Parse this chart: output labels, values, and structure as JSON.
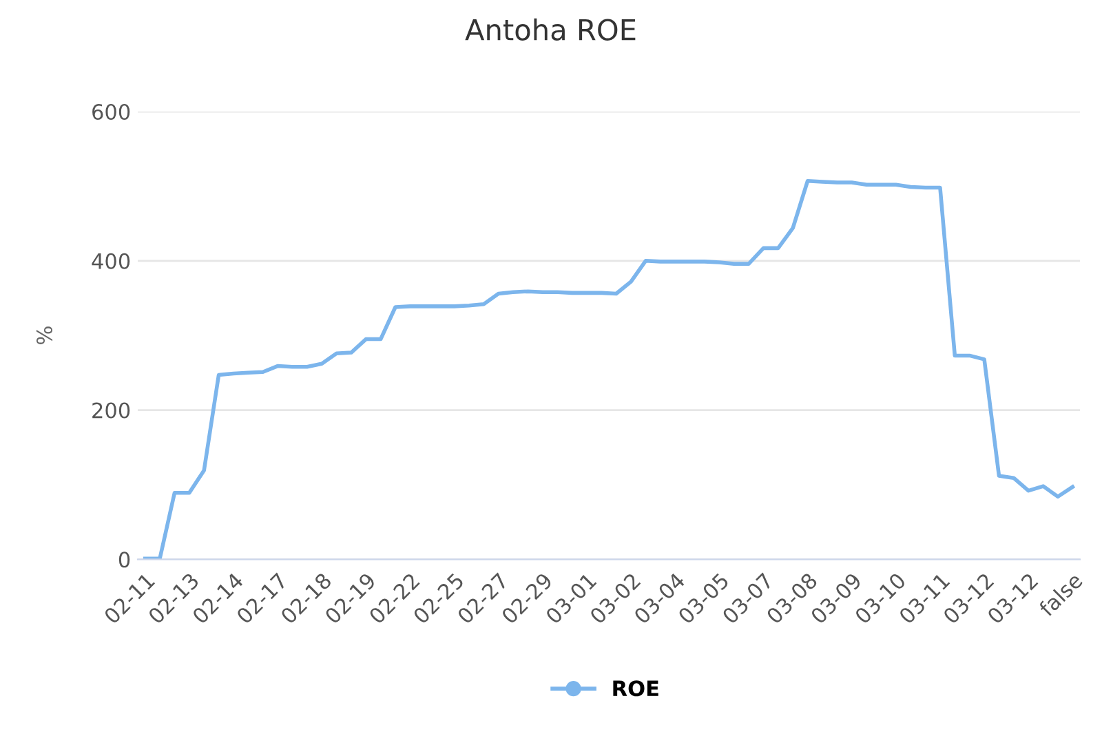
{
  "chart_data": {
    "type": "line",
    "title": "Antoha ROE",
    "ylabel": "%",
    "categories": [
      "02-11",
      null,
      null,
      "02-13",
      null,
      null,
      "02-14",
      null,
      null,
      "02-17",
      null,
      null,
      "02-18",
      null,
      null,
      "02-19",
      null,
      null,
      "02-22",
      null,
      null,
      "02-25",
      null,
      null,
      "02-27",
      null,
      null,
      "02-29",
      null,
      null,
      "03-01",
      null,
      null,
      "03-02",
      null,
      null,
      "03-04",
      null,
      null,
      "03-05",
      null,
      null,
      "03-07",
      null,
      null,
      "03-08",
      null,
      null,
      "03-09",
      null,
      null,
      "03-10",
      null,
      null,
      "03-11",
      null,
      null,
      "03-12",
      null,
      null,
      "03-12",
      null,
      null,
      "false"
    ],
    "series": [
      {
        "name": "ROE",
        "color": "#7cb5ec",
        "values": [
          1,
          1,
          89,
          89,
          119,
          247,
          249,
          250,
          251,
          259,
          258,
          258,
          262,
          276,
          277,
          295,
          295,
          338,
          339,
          339,
          339,
          339,
          340,
          342,
          356,
          358,
          359,
          358,
          358,
          357,
          357,
          357,
          356,
          372,
          400,
          399,
          399,
          399,
          399,
          398,
          396,
          396,
          417,
          417,
          444,
          507,
          506,
          505,
          505,
          502,
          502,
          502,
          499,
          498,
          498,
          273,
          273,
          268,
          112,
          109,
          92,
          98,
          84,
          97
        ]
      }
    ],
    "ylim": [
      0,
      600
    ],
    "yticks": [
      0,
      200,
      400,
      600
    ],
    "grid": "y",
    "legend": "bottom",
    "marker": "none",
    "line_style": "solid"
  }
}
